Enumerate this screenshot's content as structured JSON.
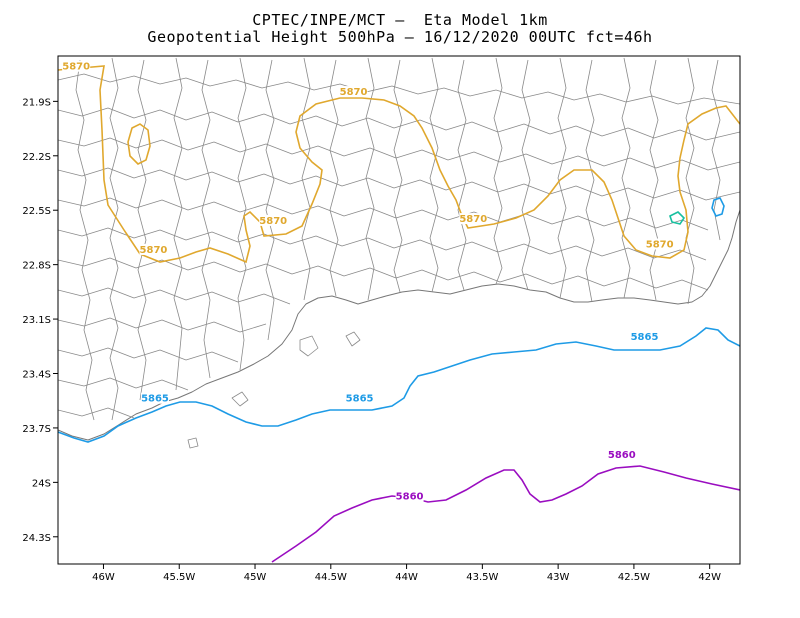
{
  "title": {
    "line1": "CPTEC/INPE/MCT –  Eta Model 1km",
    "line2": "Geopotential Height 500hPa – 16/12/2020 00UTC fct=46h"
  },
  "map": {
    "lon_range": [
      -46.3,
      -41.8
    ],
    "lat_range": [
      -24.45,
      -21.65
    ],
    "lon_ticks": [
      {
        "lon": -46.0,
        "label": "46W"
      },
      {
        "lon": -45.5,
        "label": "45.5W"
      },
      {
        "lon": -45.0,
        "label": "45W"
      },
      {
        "lon": -44.5,
        "label": "44.5W"
      },
      {
        "lon": -44.0,
        "label": "44W"
      },
      {
        "lon": -43.5,
        "label": "43.5W"
      },
      {
        "lon": -43.0,
        "label": "43W"
      },
      {
        "lon": -42.5,
        "label": "42.5W"
      },
      {
        "lon": -42.0,
        "label": "42W"
      }
    ],
    "lat_ticks": [
      {
        "lat": -21.9,
        "label": "21.9S"
      },
      {
        "lat": -22.2,
        "label": "22.2S"
      },
      {
        "lat": -22.5,
        "label": "22.5S"
      },
      {
        "lat": -22.8,
        "label": "22.8S"
      },
      {
        "lat": -23.1,
        "label": "23.1S"
      },
      {
        "lat": -23.4,
        "label": "23.4S"
      },
      {
        "lat": -23.7,
        "label": "23.7S"
      },
      {
        "lat": -24.0,
        "label": "24S"
      },
      {
        "lat": -24.3,
        "label": "24.3S"
      }
    ],
    "contours": [
      {
        "level": "5870",
        "color": "#e0a82e"
      },
      {
        "level": "5865",
        "color": "#1e9be6"
      },
      {
        "level": "5860",
        "color": "#9a0dc0"
      },
      {
        "level": "",
        "color": "#18c0a0"
      }
    ],
    "contour_labels": [
      {
        "text": "5870",
        "color": "#e0a82e",
        "lon": -46.18,
        "lat": -21.72
      },
      {
        "text": "5870",
        "color": "#e0a82e",
        "lon": -44.35,
        "lat": -21.86
      },
      {
        "text": "5870",
        "color": "#e0a82e",
        "lon": -44.88,
        "lat": -22.57
      },
      {
        "text": "5870",
        "color": "#e0a82e",
        "lon": -45.67,
        "lat": -22.73
      },
      {
        "text": "5870",
        "color": "#e0a82e",
        "lon": -43.56,
        "lat": -22.56
      },
      {
        "text": "5870",
        "color": "#e0a82e",
        "lon": -42.33,
        "lat": -22.7
      },
      {
        "text": "5865",
        "color": "#1e9be6",
        "lon": -45.66,
        "lat": -23.55
      },
      {
        "text": "5865",
        "color": "#1e9be6",
        "lon": -44.31,
        "lat": -23.55
      },
      {
        "text": "5865",
        "color": "#1e9be6",
        "lon": -42.43,
        "lat": -23.21
      },
      {
        "text": "5860",
        "color": "#9a0dc0",
        "lon": -43.98,
        "lat": -24.09
      },
      {
        "text": "5860",
        "color": "#9a0dc0",
        "lon": -42.58,
        "lat": -23.86
      }
    ]
  }
}
